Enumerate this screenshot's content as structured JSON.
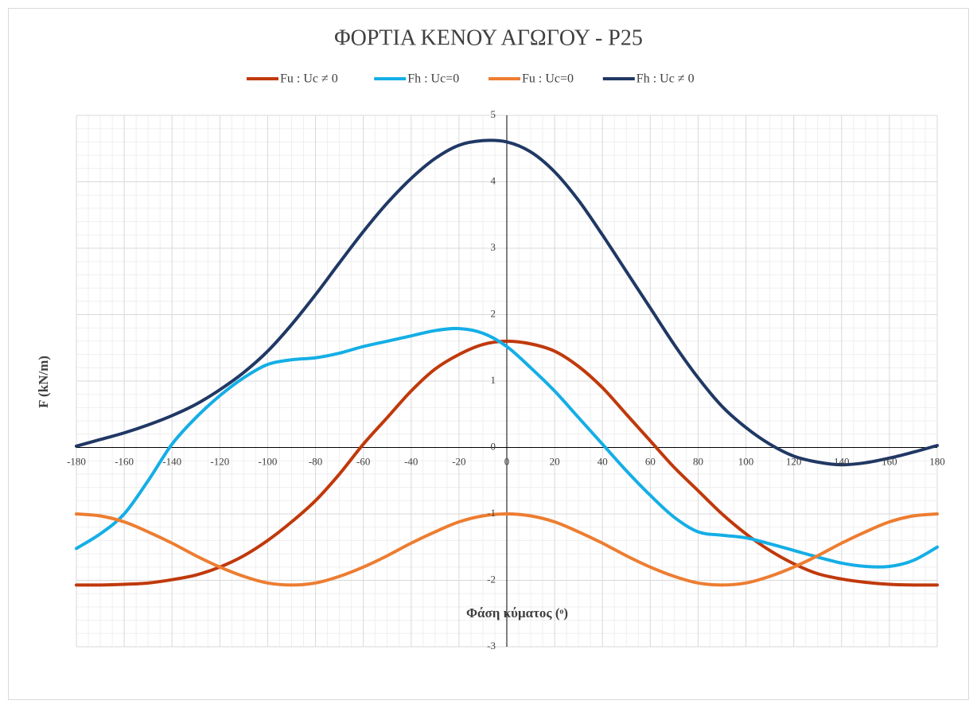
{
  "chart_data": {
    "type": "line",
    "title": "ΦΟΡΤΙΑ ΚΕΝΟΥ ΑΓΩΓΟΥ - P25",
    "x_label": "Φάση κύματος (ᵒ)",
    "y_label": "F (kN/m)",
    "x": [
      -180,
      -170,
      -160,
      -150,
      -140,
      -130,
      -120,
      -110,
      -100,
      -90,
      -80,
      -70,
      -60,
      -50,
      -40,
      -30,
      -20,
      -10,
      0,
      10,
      20,
      30,
      40,
      50,
      60,
      70,
      80,
      90,
      100,
      110,
      120,
      130,
      140,
      150,
      160,
      170,
      180
    ],
    "series": [
      {
        "name": "Fu : Uc ≠ 0",
        "color": "#c0390b",
        "values": [
          -2.07,
          -2.07,
          -2.06,
          -2.04,
          -1.99,
          -1.92,
          -1.8,
          -1.63,
          -1.4,
          -1.12,
          -0.8,
          -0.4,
          0.05,
          0.45,
          0.85,
          1.18,
          1.4,
          1.55,
          1.6,
          1.56,
          1.45,
          1.22,
          0.9,
          0.5,
          0.1,
          -0.3,
          -0.65,
          -1.0,
          -1.3,
          -1.55,
          -1.75,
          -1.9,
          -1.98,
          -2.03,
          -2.06,
          -2.07,
          -2.07
        ]
      },
      {
        "name": "Fh : Uc=0",
        "color": "#14aee6",
        "values": [
          -1.52,
          -1.3,
          -1.0,
          -0.5,
          0.05,
          0.45,
          0.78,
          1.05,
          1.25,
          1.32,
          1.35,
          1.42,
          1.52,
          1.6,
          1.68,
          1.76,
          1.79,
          1.72,
          1.52,
          1.2,
          0.85,
          0.45,
          0.05,
          -0.35,
          -0.72,
          -1.05,
          -1.27,
          -1.32,
          -1.36,
          -1.45,
          -1.55,
          -1.65,
          -1.74,
          -1.79,
          -1.79,
          -1.7,
          -1.5
        ]
      },
      {
        "name": "Fu : Uc=0",
        "color": "#ed7d31",
        "values": [
          -1.0,
          -1.03,
          -1.12,
          -1.27,
          -1.44,
          -1.63,
          -1.8,
          -1.94,
          -2.04,
          -2.07,
          -2.04,
          -1.94,
          -1.8,
          -1.63,
          -1.44,
          -1.27,
          -1.12,
          -1.03,
          -1.0,
          -1.03,
          -1.12,
          -1.27,
          -1.44,
          -1.63,
          -1.8,
          -1.94,
          -2.04,
          -2.07,
          -2.04,
          -1.94,
          -1.8,
          -1.63,
          -1.44,
          -1.27,
          -1.12,
          -1.03,
          -1.0
        ]
      },
      {
        "name": "Fh : Uc ≠ 0",
        "color": "#203864",
        "values": [
          0.02,
          0.12,
          0.22,
          0.34,
          0.48,
          0.65,
          0.87,
          1.13,
          1.45,
          1.85,
          2.3,
          2.78,
          3.25,
          3.68,
          4.05,
          4.35,
          4.55,
          4.62,
          4.6,
          4.45,
          4.15,
          3.72,
          3.2,
          2.65,
          2.1,
          1.55,
          1.05,
          0.62,
          0.3,
          0.05,
          -0.13,
          -0.22,
          -0.26,
          -0.23,
          -0.16,
          -0.07,
          0.03
        ]
      }
    ],
    "xlim": [
      -180,
      180
    ],
    "xticks": [
      -180,
      -160,
      -140,
      -120,
      -100,
      -80,
      -60,
      -40,
      -20,
      0,
      20,
      40,
      60,
      80,
      100,
      120,
      140,
      160,
      180
    ],
    "ylim": [
      -3,
      5
    ],
    "yticks": [
      -3,
      -2,
      -1,
      0,
      1,
      2,
      3,
      4,
      5
    ],
    "grid": true,
    "minor_grid": true,
    "legend": "top"
  }
}
